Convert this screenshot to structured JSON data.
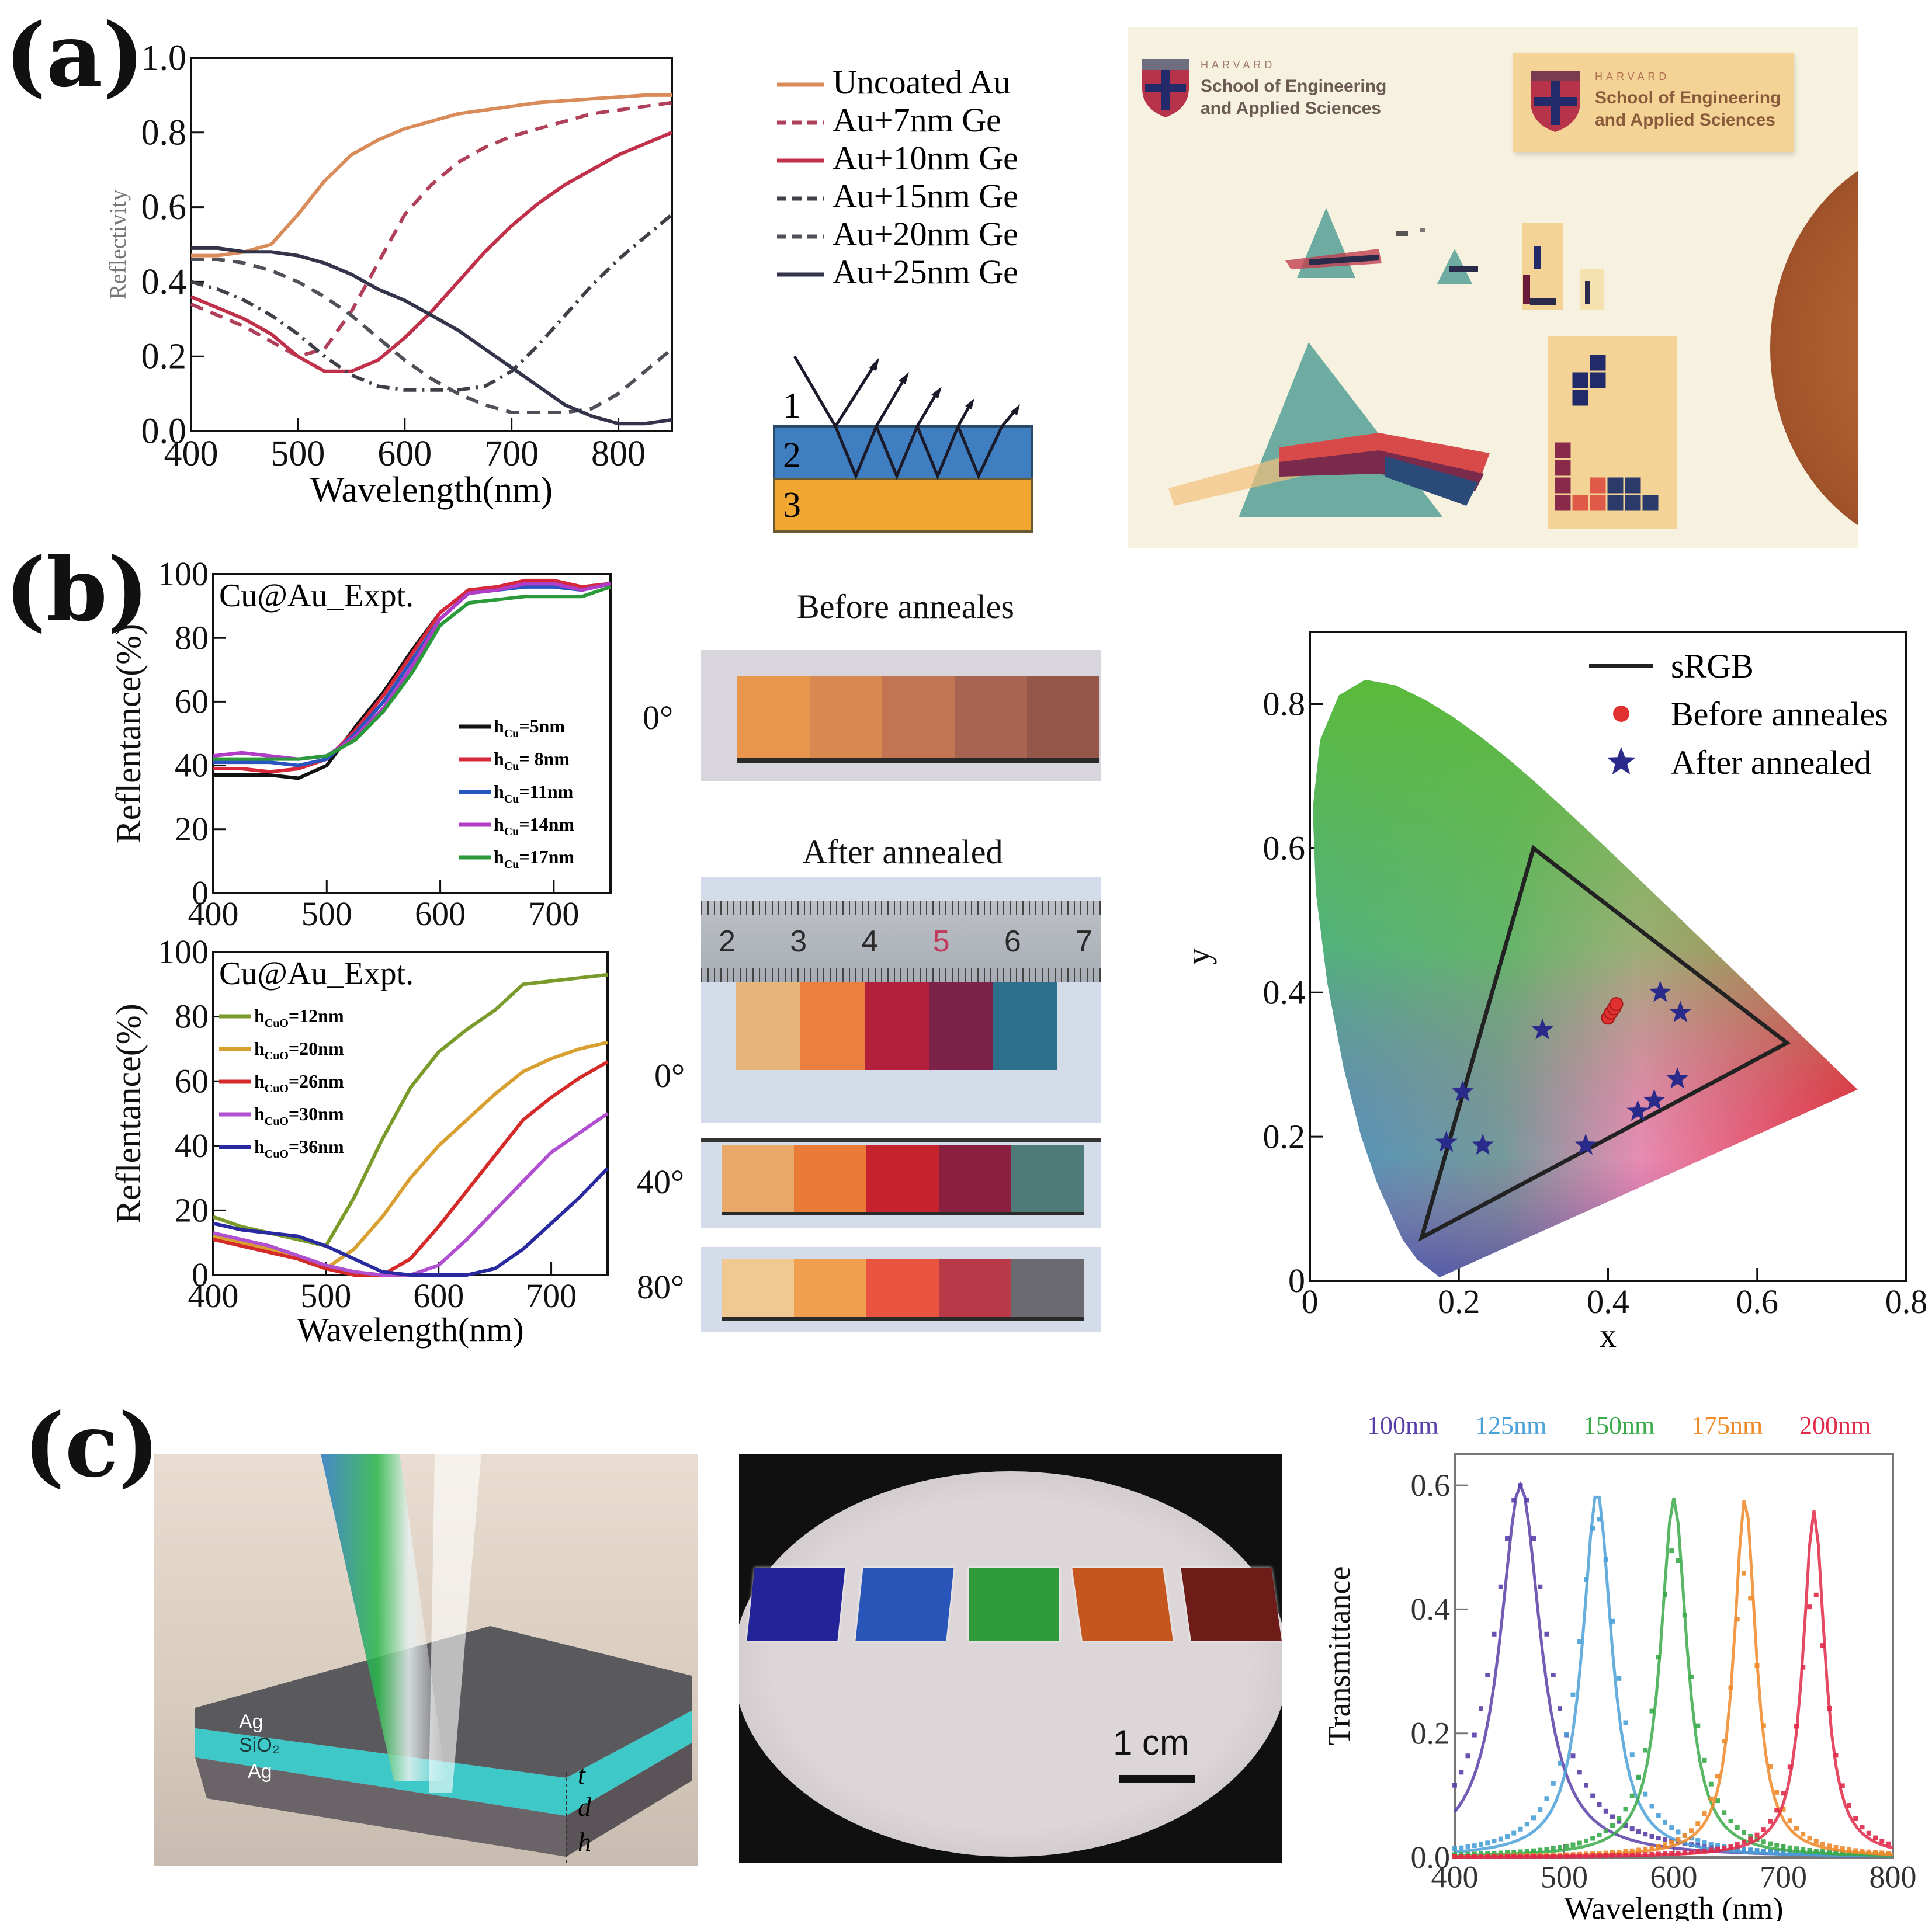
{
  "panels": {
    "a": "(a)",
    "b": "(b)",
    "c": "(c)"
  },
  "panel_a": {
    "layer_diagram": {
      "layer_labels": [
        "1",
        "2",
        "3"
      ],
      "colors": {
        "layer2": "#3f7fc1",
        "layer3": "#f2a733"
      }
    },
    "photo": {
      "logo_small": {
        "line1": "HARVARD",
        "line2": "School of Engineering",
        "line3": "and Applied Sciences"
      },
      "logo_large": {
        "line1": "HARVARD",
        "line2": "School of Engineering",
        "line3": "and Applied Sciences"
      }
    }
  },
  "panel_b": {
    "photos": {
      "before_title": "Before anneales",
      "after_title": "After annealed",
      "before_angle": "0°",
      "after_angles": [
        "0°",
        "40°",
        "80°"
      ],
      "ruler_numbers": [
        "2",
        "3",
        "4",
        "5",
        "6",
        "7"
      ],
      "before_strip_colors": [
        "#e8954e",
        "#d98850",
        "#c37453",
        "#a86450",
        "#94574a"
      ],
      "after_0_colors": [
        "#e7b579",
        "#ec7f3d",
        "#b3203c",
        "#7c2147",
        "#2f6f8e"
      ],
      "after_40_colors": [
        "#e9a968",
        "#ea7b37",
        "#c7232f",
        "#8a2040",
        "#4e7a78"
      ],
      "after_80_colors": [
        "#f1c892",
        "#ef9f4e",
        "#ea5542",
        "#b83a48",
        "#6a6a70"
      ]
    }
  },
  "panel_c": {
    "diagram": {
      "layer_labels": [
        "Ag",
        "SiO₂",
        "Ag"
      ],
      "dimension_labels": [
        "t",
        "d",
        "h"
      ]
    },
    "photo": {
      "scale_bar_label": "1 cm",
      "swatch_colors": [
        "#23239a",
        "#2a55b8",
        "#2f9a3a",
        "#c4561e",
        "#6e1c18"
      ]
    }
  },
  "chart_data": [
    {
      "id": "a-reflectivity",
      "type": "line",
      "title": "",
      "xlabel": "Wavelength(nm)",
      "ylabel": "Reflectivity",
      "xlim": [
        400,
        850
      ],
      "ylim": [
        0.0,
        1.0
      ],
      "xticks": [
        400,
        500,
        600,
        700,
        800
      ],
      "yticks": [
        0.0,
        0.2,
        0.4,
        0.6,
        0.8,
        1.0
      ],
      "ytick_labels": [
        "0.0",
        "0.2",
        "0.4",
        "0.6",
        "0.8",
        "1.0"
      ],
      "legend_position": "outside-right",
      "x": [
        400,
        425,
        450,
        475,
        500,
        525,
        550,
        575,
        600,
        625,
        650,
        675,
        700,
        725,
        750,
        775,
        800,
        825,
        850
      ],
      "series": [
        {
          "name": "Uncoated Au",
          "color": "#d98b5a",
          "dash": "solid",
          "values": [
            0.47,
            0.47,
            0.48,
            0.5,
            0.58,
            0.67,
            0.74,
            0.78,
            0.81,
            0.83,
            0.85,
            0.86,
            0.87,
            0.88,
            0.885,
            0.89,
            0.895,
            0.9,
            0.9
          ]
        },
        {
          "name": "Au+7nm Ge",
          "color": "#b0405a",
          "dash": "dash",
          "values": [
            0.34,
            0.31,
            0.28,
            0.24,
            0.2,
            0.22,
            0.32,
            0.45,
            0.58,
            0.66,
            0.72,
            0.76,
            0.79,
            0.81,
            0.83,
            0.85,
            0.86,
            0.87,
            0.88
          ]
        },
        {
          "name": "Au+10nm Ge",
          "color": "#c0304a",
          "dash": "solid",
          "values": [
            0.36,
            0.33,
            0.3,
            0.26,
            0.2,
            0.16,
            0.16,
            0.19,
            0.25,
            0.32,
            0.4,
            0.48,
            0.55,
            0.61,
            0.66,
            0.7,
            0.74,
            0.77,
            0.8
          ]
        },
        {
          "name": "Au+15nm Ge",
          "color": "#404048",
          "dash": "dashdot",
          "values": [
            0.4,
            0.38,
            0.35,
            0.31,
            0.26,
            0.2,
            0.15,
            0.12,
            0.11,
            0.11,
            0.11,
            0.12,
            0.16,
            0.23,
            0.31,
            0.39,
            0.46,
            0.52,
            0.58
          ]
        },
        {
          "name": "Au+20nm Ge",
          "color": "#505058",
          "dash": "dash",
          "values": [
            0.46,
            0.46,
            0.45,
            0.43,
            0.4,
            0.36,
            0.31,
            0.25,
            0.19,
            0.14,
            0.1,
            0.07,
            0.05,
            0.05,
            0.05,
            0.06,
            0.1,
            0.16,
            0.22
          ]
        },
        {
          "name": "Au+25nm Ge",
          "color": "#33334a",
          "dash": "solid",
          "values": [
            0.49,
            0.49,
            0.48,
            0.48,
            0.47,
            0.45,
            0.42,
            0.38,
            0.35,
            0.31,
            0.27,
            0.22,
            0.17,
            0.12,
            0.07,
            0.04,
            0.02,
            0.02,
            0.03
          ]
        }
      ]
    },
    {
      "id": "b-reflectance-cu",
      "type": "line",
      "annotation": "Cu@Au_Expt.",
      "xlabel": "",
      "ylabel": "Reflentance(%)",
      "xlim": [
        400,
        750
      ],
      "ylim": [
        0,
        100
      ],
      "xticks": [
        400,
        500,
        600,
        700
      ],
      "yticks": [
        0,
        20,
        40,
        60,
        80,
        100
      ],
      "legend_position": "lower-right",
      "x": [
        400,
        425,
        450,
        475,
        500,
        525,
        550,
        575,
        600,
        625,
        650,
        675,
        700,
        725,
        750
      ],
      "series": [
        {
          "name": "h_Cu=5nm",
          "label_main": "h",
          "label_sub": "Cu",
          "label_rest": "=5nm",
          "color": "#111111",
          "values": [
            37,
            37,
            37,
            36,
            40,
            52,
            63,
            76,
            88,
            95,
            96,
            97,
            97,
            96,
            97
          ]
        },
        {
          "name": "h_Cu= 8nm",
          "label_main": "h",
          "label_sub": "Cu",
          "label_rest": "= 8nm",
          "color": "#d6283a",
          "values": [
            39,
            39,
            38,
            39,
            42,
            51,
            62,
            75,
            88,
            95,
            96,
            98,
            98,
            96,
            97
          ]
        },
        {
          "name": "h_Cu=11nm",
          "label_main": "h",
          "label_sub": "Cu",
          "label_rest": "=11nm",
          "color": "#2a55c0",
          "values": [
            41,
            41,
            41,
            40,
            42,
            50,
            60,
            73,
            86,
            94,
            95,
            96,
            96,
            95,
            97
          ]
        },
        {
          "name": "h_Cu=14nm",
          "label_main": "h",
          "label_sub": "Cu",
          "label_rest": "=14nm",
          "color": "#b03cc8",
          "values": [
            43,
            44,
            43,
            42,
            43,
            49,
            58,
            71,
            86,
            94,
            95,
            97,
            97,
            95,
            97
          ]
        },
        {
          "name": "h_Cu=17nm",
          "label_main": "h",
          "label_sub": "Cu",
          "label_rest": "=17nm",
          "color": "#2a9a3a",
          "values": [
            42,
            42,
            42,
            42,
            43,
            48,
            57,
            69,
            84,
            91,
            92,
            93,
            93,
            93,
            96
          ]
        }
      ]
    },
    {
      "id": "b-reflectance-cuo",
      "type": "line",
      "annotation": "Cu@Au_Expt.",
      "xlabel": "Wavelength(nm)",
      "ylabel": "Reflentance(%)",
      "xlim": [
        400,
        750
      ],
      "ylim": [
        0,
        100
      ],
      "xticks": [
        400,
        500,
        600,
        700
      ],
      "yticks": [
        0,
        20,
        40,
        60,
        80,
        100
      ],
      "legend_position": "upper-left",
      "x": [
        400,
        425,
        450,
        475,
        500,
        525,
        550,
        575,
        600,
        625,
        650,
        675,
        700,
        725,
        750
      ],
      "series": [
        {
          "name": "h_CuO=12nm",
          "label_main": "h",
          "label_sub": "CuO",
          "label_rest": "=12nm",
          "color": "#7a9a2a",
          "values": [
            18,
            15,
            13,
            11,
            9,
            24,
            42,
            58,
            69,
            76,
            82,
            90,
            91,
            92,
            93
          ]
        },
        {
          "name": "h_CuO=20nm",
          "label_main": "h",
          "label_sub": "CuO",
          "label_rest": "=20nm",
          "color": "#d8a030",
          "values": [
            12,
            10,
            8,
            5,
            2,
            8,
            18,
            30,
            40,
            48,
            56,
            63,
            67,
            70,
            72
          ]
        },
        {
          "name": "h_CuO=26nm",
          "label_main": "h",
          "label_sub": "CuO",
          "label_rest": "=26nm",
          "color": "#d42a2a",
          "values": [
            11,
            9,
            7,
            5,
            2,
            0,
            0,
            5,
            15,
            26,
            37,
            48,
            55,
            61,
            66
          ]
        },
        {
          "name": "h_CuO=30nm",
          "label_main": "h",
          "label_sub": "CuO",
          "label_rest": "=30nm",
          "color": "#b050d0",
          "values": [
            13,
            11,
            9,
            6,
            3,
            1,
            0,
            0,
            3,
            11,
            20,
            29,
            38,
            44,
            50
          ]
        },
        {
          "name": "h_CuO=36nm",
          "label_main": "h",
          "label_sub": "CuO",
          "label_rest": "=36nm",
          "color": "#2a2aa0",
          "values": [
            16,
            14,
            13,
            12,
            9,
            5,
            1,
            0,
            0,
            0,
            2,
            8,
            16,
            24,
            33
          ]
        }
      ]
    },
    {
      "id": "b-cie",
      "type": "scatter",
      "xlabel": "x",
      "ylabel": "y",
      "xlim": [
        0,
        0.8
      ],
      "ylim": [
        0,
        0.9
      ],
      "xticks": [
        0,
        0.2,
        0.4,
        0.6,
        0.8
      ],
      "xtick_labels": [
        "0",
        "0.2",
        "0.4",
        "0.6",
        "0.8"
      ],
      "yticks": [
        0,
        0.2,
        0.4,
        0.6,
        0.8
      ],
      "ytick_labels": [
        "0",
        "0.2",
        "0.4",
        "0.6",
        "0.8"
      ],
      "legend_position": "top-right",
      "srgb_triangle": {
        "name": "sRGB",
        "points": [
          [
            0.64,
            0.33
          ],
          [
            0.3,
            0.6
          ],
          [
            0.15,
            0.06
          ]
        ]
      },
      "locus": [
        [
          0.1741,
          0.005
        ],
        [
          0.144,
          0.0297
        ],
        [
          0.1241,
          0.0578
        ],
        [
          0.0913,
          0.1327
        ],
        [
          0.0687,
          0.2007
        ],
        [
          0.0454,
          0.295
        ],
        [
          0.0235,
          0.4127
        ],
        [
          0.0082,
          0.5384
        ],
        [
          0.0039,
          0.6548
        ],
        [
          0.0139,
          0.7502
        ],
        [
          0.0389,
          0.812
        ],
        [
          0.0743,
          0.8338
        ],
        [
          0.1142,
          0.8262
        ],
        [
          0.1547,
          0.8059
        ],
        [
          0.1929,
          0.7816
        ],
        [
          0.2296,
          0.7543
        ],
        [
          0.2658,
          0.7243
        ],
        [
          0.3016,
          0.6923
        ],
        [
          0.3373,
          0.6589
        ],
        [
          0.3731,
          0.6245
        ],
        [
          0.4087,
          0.5896
        ],
        [
          0.4441,
          0.5547
        ],
        [
          0.4788,
          0.5202
        ],
        [
          0.5125,
          0.4866
        ],
        [
          0.5448,
          0.4544
        ],
        [
          0.5752,
          0.4242
        ],
        [
          0.6029,
          0.3965
        ],
        [
          0.627,
          0.3725
        ],
        [
          0.6482,
          0.3514
        ],
        [
          0.6658,
          0.334
        ],
        [
          0.6801,
          0.3197
        ],
        [
          0.6915,
          0.3083
        ],
        [
          0.7079,
          0.292
        ],
        [
          0.7347,
          0.2653
        ]
      ],
      "series": [
        {
          "name": "Before anneales",
          "marker": "circle",
          "color": "#e03030",
          "points": [
            [
              0.4,
              0.365
            ],
            [
              0.404,
              0.372
            ],
            [
              0.408,
              0.378
            ],
            [
              0.411,
              0.384
            ]
          ]
        },
        {
          "name": "After annealed",
          "marker": "star",
          "color": "#2a2a8a",
          "points": [
            [
              0.47,
              0.4
            ],
            [
              0.497,
              0.372
            ],
            [
              0.312,
              0.348
            ],
            [
              0.493,
              0.28
            ],
            [
              0.462,
              0.25
            ],
            [
              0.44,
              0.235
            ],
            [
              0.37,
              0.188
            ],
            [
              0.205,
              0.262
            ],
            [
              0.183,
              0.192
            ],
            [
              0.232,
              0.188
            ]
          ]
        }
      ]
    },
    {
      "id": "c-transmittance",
      "type": "line",
      "xlabel": "Wavelength (nm)",
      "ylabel": "Transmittance",
      "xlim": [
        400,
        800
      ],
      "ylim": [
        0.0,
        0.65
      ],
      "xticks": [
        400,
        500,
        600,
        700,
        800
      ],
      "yticks": [
        0.0,
        0.2,
        0.4,
        0.6
      ],
      "ytick_labels": [
        "0.0",
        "0.2",
        "0.4",
        "0.6"
      ],
      "legend_position": "top",
      "series": [
        {
          "name": "100nm",
          "color": "#5a3fa8",
          "peak_nm": 460,
          "peak_sim": 0.6,
          "peak_exp": 0.6,
          "width_nm": 28
        },
        {
          "name": "125nm",
          "color": "#4aa0d8",
          "peak_nm": 530,
          "peak_sim": 0.59,
          "peak_exp": 0.55,
          "width_nm": 20
        },
        {
          "name": "150nm",
          "color": "#3aaa4a",
          "peak_nm": 600,
          "peak_sim": 0.58,
          "peak_exp": 0.5,
          "width_nm": 18
        },
        {
          "name": "175nm",
          "color": "#ee8a2a",
          "peak_nm": 665,
          "peak_sim": 0.58,
          "peak_exp": 0.46,
          "width_nm": 15
        },
        {
          "name": "200nm",
          "color": "#e02a4a",
          "peak_nm": 728,
          "peak_sim": 0.56,
          "peak_exp": 0.43,
          "width_nm": 15
        }
      ]
    }
  ]
}
